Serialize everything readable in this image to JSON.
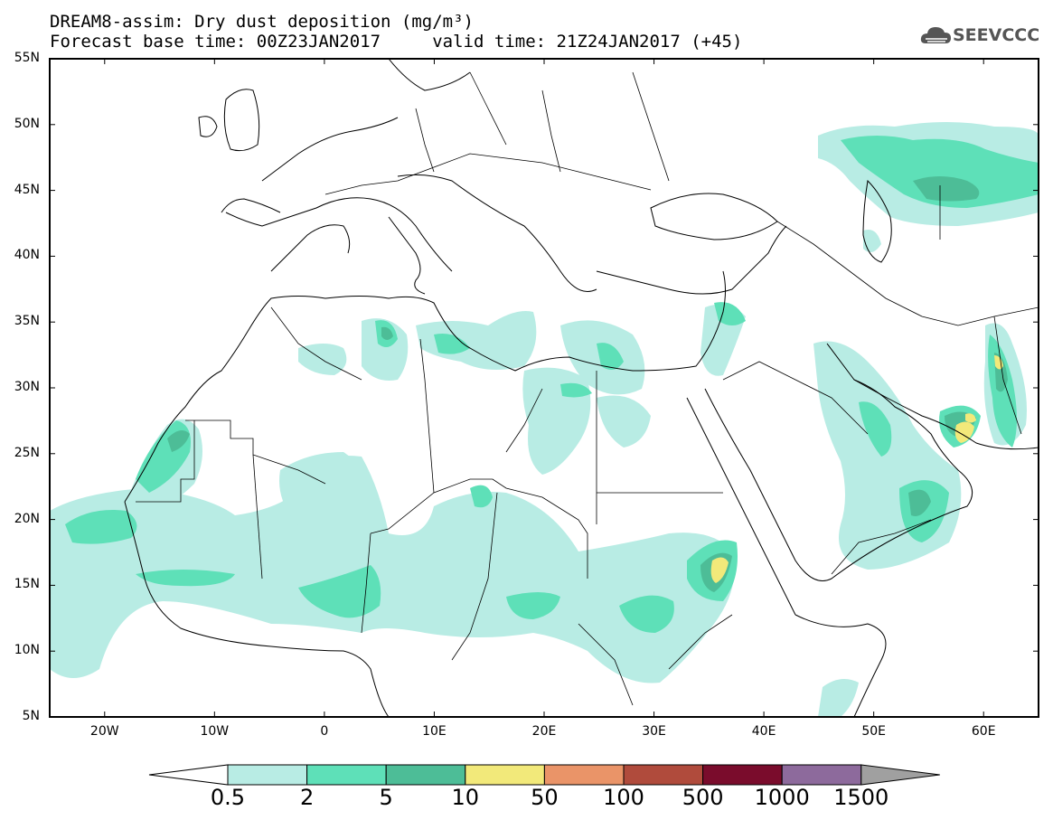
{
  "header": {
    "title_line1": "DREAM8-assim: Dry dust deposition (mg/m³)",
    "title_line2": "Forecast base time: 00Z23JAN2017     valid time: 21Z24JAN2017 (+45)"
  },
  "logo": {
    "text": "SEEVCCC",
    "icon": "cloud-icon"
  },
  "map": {
    "lat_range": [
      5,
      55
    ],
    "lon_range": [
      -25,
      65
    ],
    "lat_labels": [
      "55N",
      "50N",
      "45N",
      "40N",
      "35N",
      "30N",
      "25N",
      "20N",
      "15N",
      "10N",
      "5N"
    ],
    "lat_values": [
      55,
      50,
      45,
      40,
      35,
      30,
      25,
      20,
      15,
      10,
      5
    ],
    "lon_labels": [
      "20W",
      "10W",
      "0",
      "10E",
      "20E",
      "30E",
      "40E",
      "50E",
      "60E"
    ],
    "lon_values": [
      -20,
      -10,
      0,
      10,
      20,
      30,
      40,
      50,
      60
    ]
  },
  "legend": {
    "labels": [
      "0.5",
      "2",
      "5",
      "10",
      "50",
      "100",
      "500",
      "1000",
      "1500"
    ],
    "colors": [
      "#ffffff",
      "#b8ece4",
      "#5ee0b8",
      "#4dbd97",
      "#f2e97a",
      "#ea9468",
      "#b04b3c",
      "#7a0c2c",
      "#8d6a9c",
      "#a0a0a0"
    ]
  }
}
